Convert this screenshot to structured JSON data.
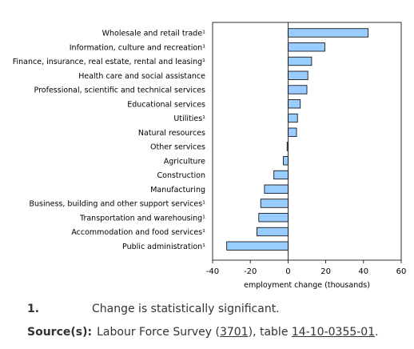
{
  "chart_data": {
    "type": "bar",
    "orientation": "horizontal",
    "categories": [
      "Wholesale and retail trade¹",
      "Information, culture and recreation¹",
      "Finance, insurance, real estate, rental and leasing¹",
      "Health care and social assistance",
      "Professional, scientific and technical services",
      "Educational services",
      "Utilities¹",
      "Natural resources",
      "Other services",
      "Agriculture",
      "Construction",
      "Manufacturing",
      "Business, building and other support services¹",
      "Transportation and warehousing¹",
      "Accommodation and food services¹",
      "Public administration¹"
    ],
    "values": [
      42.5,
      19.5,
      12.5,
      10.5,
      10,
      6.5,
      5,
      4.5,
      -0.5,
      -2.5,
      -7.5,
      -12.5,
      -14.5,
      -15.5,
      -16.5,
      -32.5
    ],
    "xlabel": "employment change (thousands)",
    "xlim": [
      -40,
      60
    ],
    "xticks": [
      "-40",
      "-20",
      "0",
      "20",
      "40",
      "60"
    ],
    "bar_color": "#99ccff",
    "bar_edge_color": "#000000",
    "grid": false
  },
  "footnote": {
    "number": "1.",
    "text": "Change is statistically significant."
  },
  "source": {
    "label": "Source(s):",
    "text_before": "Labour Force Survey (",
    "survey_number": "3701",
    "text_middle": "), table ",
    "table_number": "14-10-0355-01",
    "text_after": "."
  }
}
